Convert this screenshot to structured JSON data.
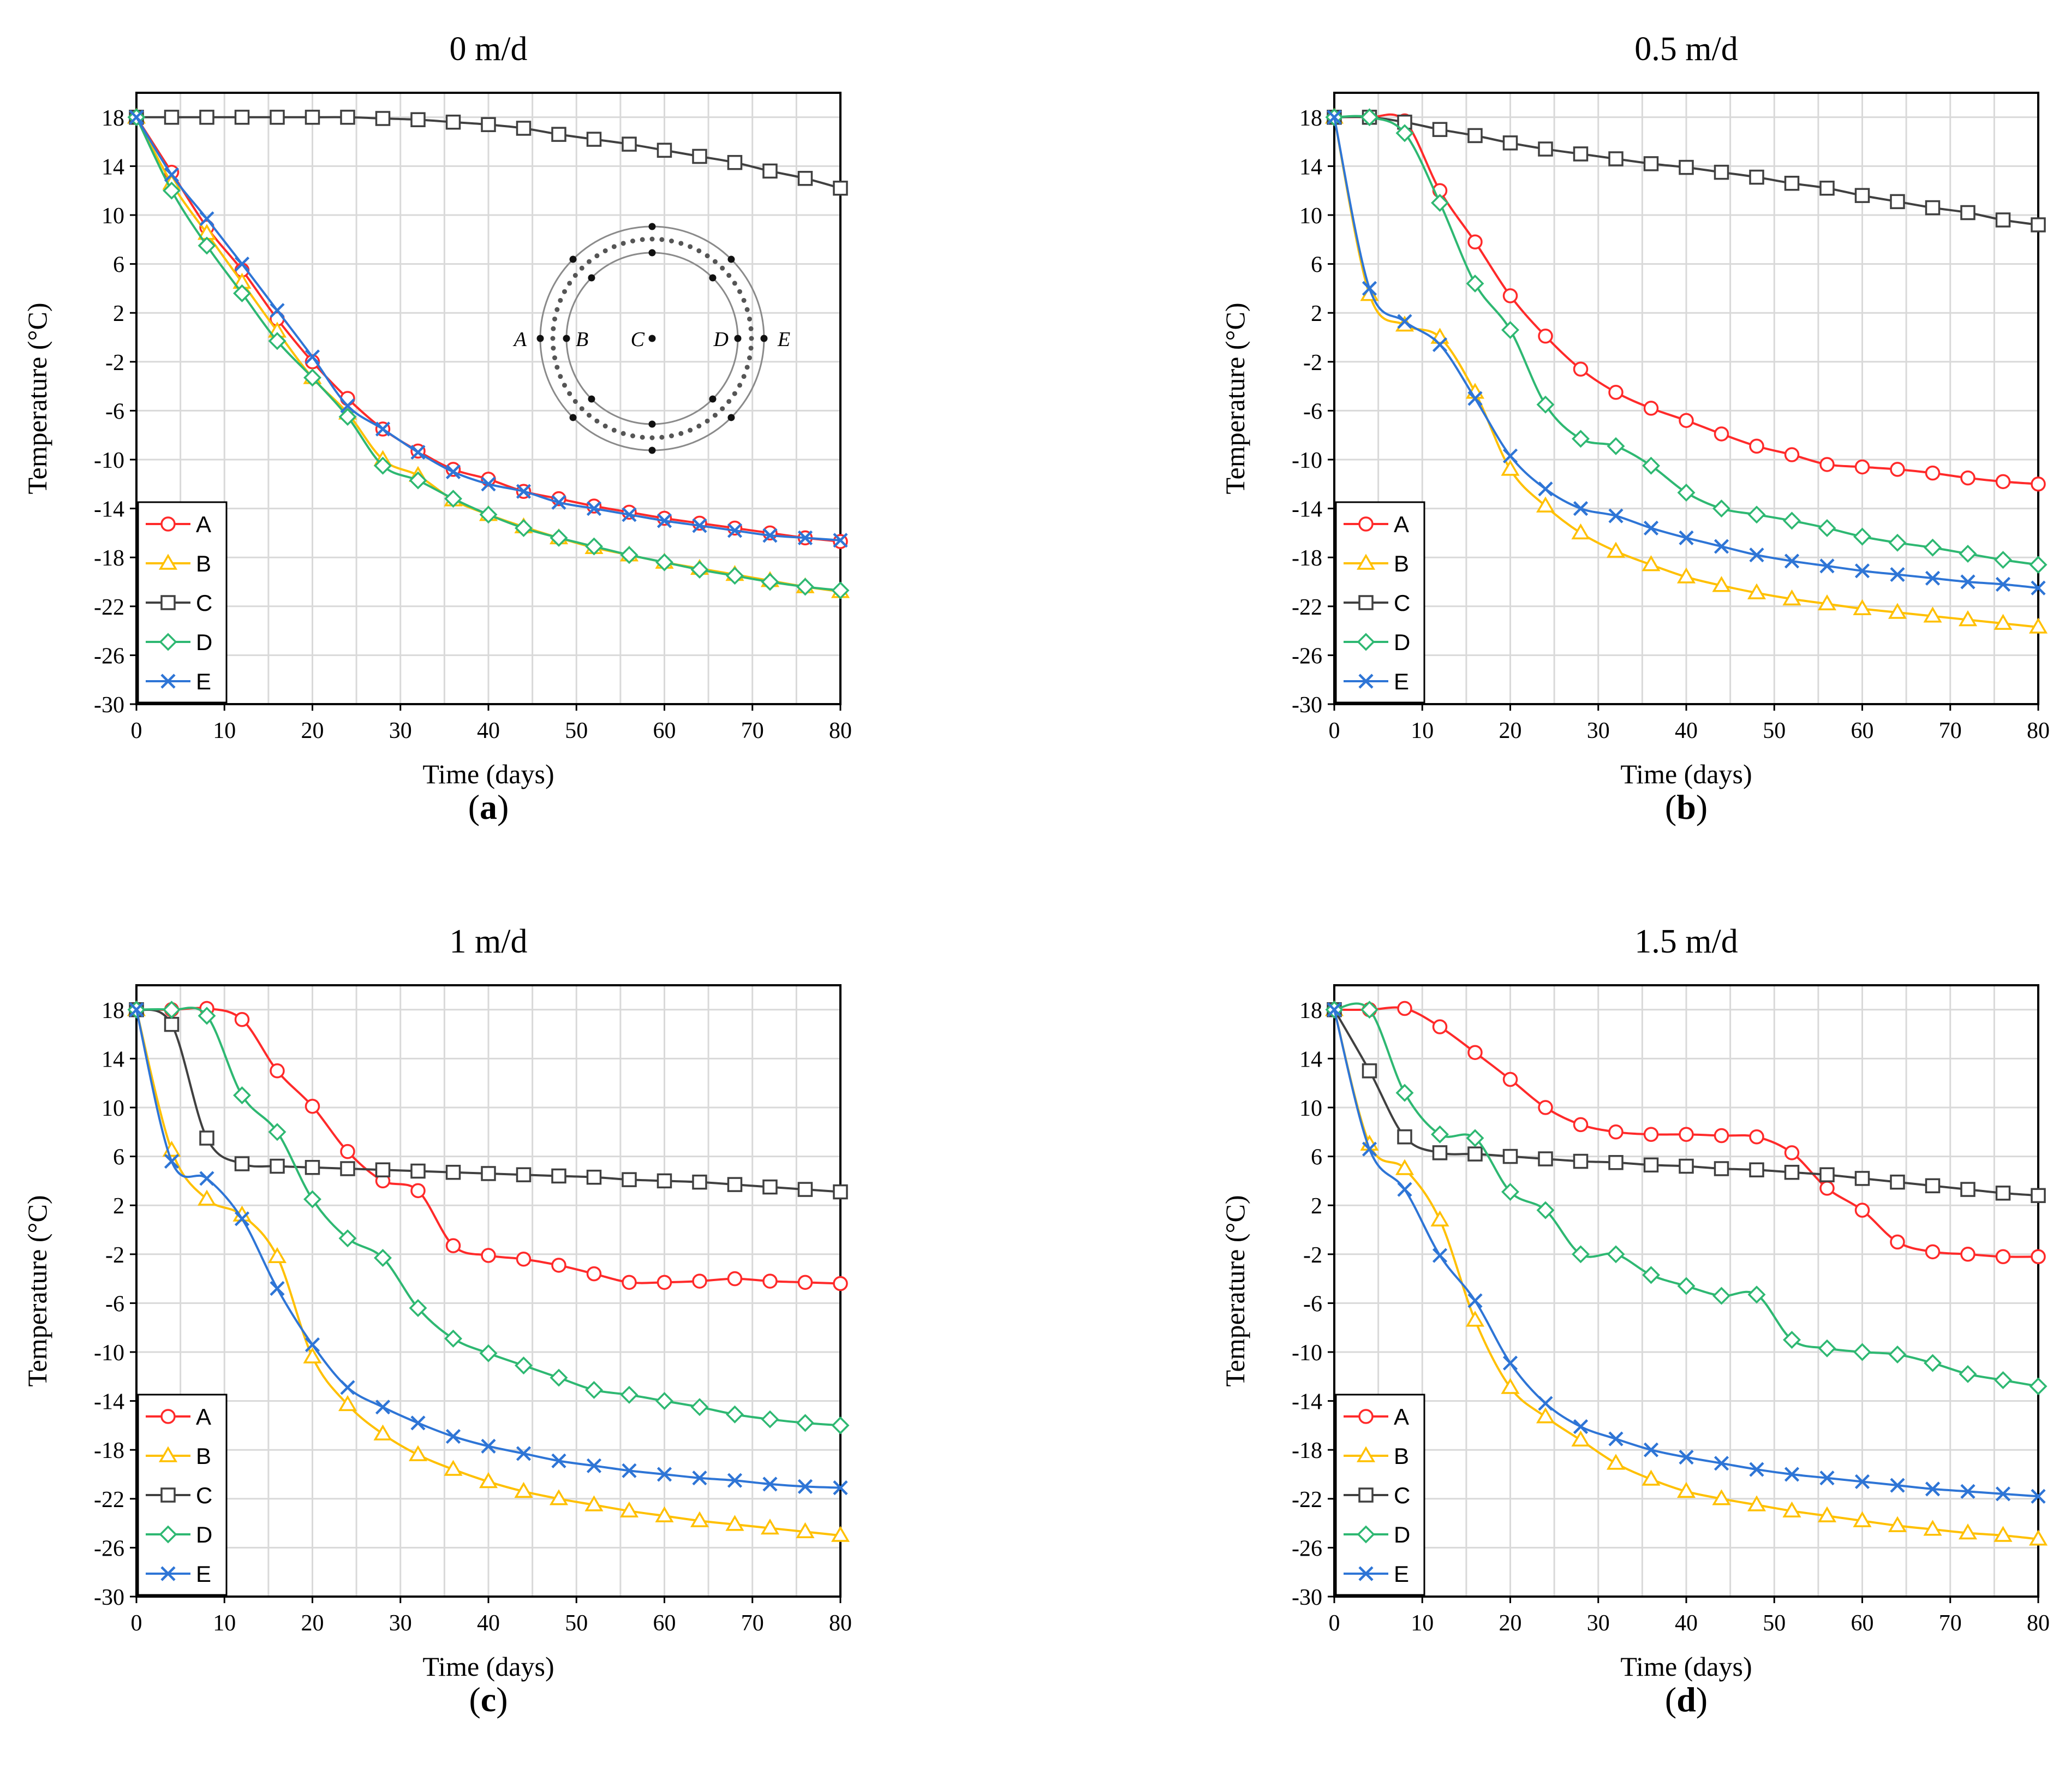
{
  "chart_data": [
    {
      "type": "line",
      "panel_letter": "a",
      "title": "0 m/d",
      "xlabel": "Time (days)",
      "ylabel": "Temperature (°C)",
      "xlim": [
        0,
        80
      ],
      "ylim": [
        -30,
        20
      ],
      "xticks": [
        0,
        10,
        20,
        30,
        40,
        50,
        60,
        70,
        80
      ],
      "yticks": [
        18,
        14,
        10,
        6,
        2,
        -2,
        -6,
        -10,
        -14,
        -18,
        -22,
        -26,
        -30
      ],
      "grid": true,
      "legend_position": "bottom-left",
      "x": [
        0,
        4,
        8,
        12,
        16,
        20,
        24,
        28,
        32,
        36,
        40,
        44,
        48,
        52,
        56,
        60,
        64,
        68,
        72,
        76,
        80
      ],
      "series": [
        {
          "name": "A",
          "color": "#ff2a2a",
          "marker": "circle",
          "values": [
            18,
            13.5,
            9,
            5.5,
            1.5,
            -2,
            -5,
            -7.5,
            -9.3,
            -10.8,
            -11.6,
            -12.6,
            -13.2,
            -13.8,
            -14.3,
            -14.8,
            -15.2,
            -15.6,
            -16.0,
            -16.4,
            -16.7
          ]
        },
        {
          "name": "B",
          "color": "#ffc000",
          "marker": "triangle",
          "values": [
            18,
            12.6,
            8.5,
            4.5,
            0.5,
            -3.3,
            -6.2,
            -10.0,
            -11.3,
            -13.3,
            -14.5,
            -15.5,
            -16.4,
            -17.2,
            -17.8,
            -18.4,
            -18.9,
            -19.4,
            -19.9,
            -20.4,
            -20.8
          ]
        },
        {
          "name": "C",
          "color": "#404040",
          "marker": "square",
          "values": [
            18,
            18,
            18,
            18,
            18,
            18,
            18,
            17.9,
            17.8,
            17.6,
            17.4,
            17.1,
            16.6,
            16.2,
            15.8,
            15.3,
            14.8,
            14.3,
            13.6,
            13.0,
            12.2
          ]
        },
        {
          "name": "D",
          "color": "#2eb872",
          "marker": "diamond",
          "values": [
            18,
            12.0,
            7.5,
            3.6,
            -0.3,
            -3.3,
            -6.5,
            -10.5,
            -11.7,
            -13.2,
            -14.5,
            -15.6,
            -16.4,
            -17.1,
            -17.8,
            -18.4,
            -19.0,
            -19.5,
            -20.0,
            -20.4,
            -20.7
          ]
        },
        {
          "name": "E",
          "color": "#2e75d6",
          "marker": "cross",
          "values": [
            18,
            13.3,
            9.7,
            6.0,
            2.2,
            -1.6,
            -5.6,
            -7.5,
            -9.4,
            -11.0,
            -12.0,
            -12.6,
            -13.5,
            -14.0,
            -14.5,
            -15.0,
            -15.4,
            -15.8,
            -16.2,
            -16.4,
            -16.6
          ]
        }
      ],
      "inset": {
        "labels": [
          "A",
          "B",
          "C",
          "D",
          "E"
        ]
      }
    },
    {
      "type": "line",
      "panel_letter": "b",
      "title": "0.5 m/d",
      "xlabel": "Time (days)",
      "ylabel": "Temperature (°C)",
      "xlim": [
        0,
        80
      ],
      "ylim": [
        -30,
        20
      ],
      "xticks": [
        0,
        10,
        20,
        30,
        40,
        50,
        60,
        70,
        80
      ],
      "yticks": [
        18,
        14,
        10,
        6,
        2,
        -2,
        -6,
        -10,
        -14,
        -18,
        -22,
        -26,
        -30
      ],
      "grid": true,
      "legend_position": "bottom-left",
      "x": [
        0,
        4,
        8,
        12,
        16,
        20,
        24,
        28,
        32,
        36,
        40,
        44,
        48,
        52,
        56,
        60,
        64,
        68,
        72,
        76,
        80
      ],
      "series": [
        {
          "name": "A",
          "color": "#ff2a2a",
          "marker": "circle",
          "values": [
            18,
            18,
            17.7,
            12.0,
            7.8,
            3.4,
            0.1,
            -2.6,
            -4.5,
            -5.8,
            -6.8,
            -7.9,
            -8.9,
            -9.6,
            -10.4,
            -10.6,
            -10.8,
            -11.1,
            -11.5,
            -11.8,
            -12.0
          ]
        },
        {
          "name": "B",
          "color": "#ffc000",
          "marker": "triangle",
          "values": [
            18,
            3.5,
            1.0,
            0.0,
            -4.5,
            -10.8,
            -13.8,
            -16.0,
            -17.5,
            -18.6,
            -19.6,
            -20.3,
            -20.9,
            -21.4,
            -21.8,
            -22.2,
            -22.5,
            -22.8,
            -23.1,
            -23.4,
            -23.7
          ]
        },
        {
          "name": "C",
          "color": "#404040",
          "marker": "square",
          "values": [
            18,
            18,
            17.6,
            17.0,
            16.5,
            15.9,
            15.4,
            15.0,
            14.6,
            14.2,
            13.9,
            13.5,
            13.1,
            12.6,
            12.2,
            11.6,
            11.1,
            10.6,
            10.2,
            9.6,
            9.2
          ]
        },
        {
          "name": "D",
          "color": "#2eb872",
          "marker": "diamond",
          "values": [
            18,
            18,
            16.7,
            11.0,
            4.4,
            0.6,
            -5.5,
            -8.3,
            -8.9,
            -10.5,
            -12.7,
            -14.0,
            -14.5,
            -15.0,
            -15.6,
            -16.3,
            -16.8,
            -17.2,
            -17.7,
            -18.2,
            -18.6
          ]
        },
        {
          "name": "E",
          "color": "#2e75d6",
          "marker": "cross",
          "values": [
            18,
            4.0,
            1.3,
            -0.6,
            -5.0,
            -9.7,
            -12.4,
            -14.0,
            -14.6,
            -15.6,
            -16.4,
            -17.1,
            -17.8,
            -18.3,
            -18.7,
            -19.1,
            -19.4,
            -19.7,
            -20.0,
            -20.2,
            -20.5
          ]
        }
      ]
    },
    {
      "type": "line",
      "panel_letter": "c",
      "title": "1 m/d",
      "xlabel": "Time (days)",
      "ylabel": "Temperature (°C)",
      "xlim": [
        0,
        80
      ],
      "ylim": [
        -30,
        20
      ],
      "xticks": [
        0,
        10,
        20,
        30,
        40,
        50,
        60,
        70,
        80
      ],
      "yticks": [
        18,
        14,
        10,
        6,
        2,
        -2,
        -6,
        -10,
        -14,
        -18,
        -22,
        -26,
        -30
      ],
      "grid": true,
      "legend_position": "bottom-left",
      "x": [
        0,
        4,
        8,
        12,
        16,
        20,
        24,
        28,
        32,
        36,
        40,
        44,
        48,
        52,
        56,
        60,
        64,
        68,
        72,
        76,
        80
      ],
      "series": [
        {
          "name": "A",
          "color": "#ff2a2a",
          "marker": "circle",
          "values": [
            18,
            18,
            18.1,
            17.2,
            13.0,
            10.1,
            6.4,
            4.0,
            3.2,
            -1.3,
            -2.1,
            -2.4,
            -2.9,
            -3.6,
            -4.3,
            -4.3,
            -4.2,
            -4.0,
            -4.2,
            -4.3,
            -4.4
          ]
        },
        {
          "name": "B",
          "color": "#ffc000",
          "marker": "triangle",
          "values": [
            18,
            6.5,
            2.5,
            1.2,
            -2.2,
            -10.4,
            -14.3,
            -16.7,
            -18.4,
            -19.6,
            -20.6,
            -21.4,
            -22.0,
            -22.5,
            -23.0,
            -23.4,
            -23.8,
            -24.1,
            -24.4,
            -24.7,
            -25.0
          ]
        },
        {
          "name": "C",
          "color": "#404040",
          "marker": "square",
          "values": [
            18,
            16.8,
            7.5,
            5.4,
            5.2,
            5.1,
            5.0,
            4.9,
            4.8,
            4.7,
            4.6,
            4.5,
            4.4,
            4.3,
            4.1,
            4.0,
            3.9,
            3.7,
            3.5,
            3.3,
            3.1
          ]
        },
        {
          "name": "D",
          "color": "#2eb872",
          "marker": "diamond",
          "values": [
            18,
            18,
            17.5,
            11.0,
            8.0,
            2.5,
            -0.7,
            -2.3,
            -6.4,
            -8.9,
            -10.1,
            -11.1,
            -12.1,
            -13.1,
            -13.5,
            -14.0,
            -14.5,
            -15.1,
            -15.5,
            -15.8,
            -16.0
          ]
        },
        {
          "name": "E",
          "color": "#2e75d6",
          "marker": "cross",
          "values": [
            18,
            5.6,
            4.2,
            0.9,
            -4.8,
            -9.4,
            -12.9,
            -14.5,
            -15.8,
            -16.9,
            -17.7,
            -18.3,
            -18.9,
            -19.3,
            -19.7,
            -20.0,
            -20.3,
            -20.5,
            -20.8,
            -21.0,
            -21.1
          ]
        }
      ]
    },
    {
      "type": "line",
      "panel_letter": "d",
      "title": "1.5 m/d",
      "xlabel": "Time (days)",
      "ylabel": "Temperature (°C)",
      "xlim": [
        0,
        80
      ],
      "ylim": [
        -30,
        20
      ],
      "xticks": [
        0,
        10,
        20,
        30,
        40,
        50,
        60,
        70,
        80
      ],
      "yticks": [
        18,
        14,
        10,
        6,
        2,
        -2,
        -6,
        -10,
        -14,
        -18,
        -22,
        -26,
        -30
      ],
      "grid": true,
      "legend_position": "bottom-left",
      "x": [
        0,
        4,
        8,
        12,
        16,
        20,
        24,
        28,
        32,
        36,
        40,
        44,
        48,
        52,
        56,
        60,
        64,
        68,
        72,
        76,
        80
      ],
      "series": [
        {
          "name": "A",
          "color": "#ff2a2a",
          "marker": "circle",
          "values": [
            18,
            18,
            18.1,
            16.6,
            14.5,
            12.3,
            10.0,
            8.6,
            8.0,
            7.8,
            7.8,
            7.7,
            7.6,
            6.3,
            3.4,
            1.6,
            -1.0,
            -1.8,
            -2.0,
            -2.2,
            -2.2
          ]
        },
        {
          "name": "B",
          "color": "#ffc000",
          "marker": "triangle",
          "values": [
            18,
            7.0,
            5.0,
            0.8,
            -7.4,
            -12.9,
            -15.3,
            -17.2,
            -19.1,
            -20.4,
            -21.4,
            -22.0,
            -22.5,
            -23.0,
            -23.4,
            -23.8,
            -24.2,
            -24.5,
            -24.8,
            -25.0,
            -25.3
          ]
        },
        {
          "name": "C",
          "color": "#404040",
          "marker": "square",
          "values": [
            18,
            13.0,
            7.6,
            6.3,
            6.2,
            6.0,
            5.8,
            5.6,
            5.5,
            5.3,
            5.2,
            5.0,
            4.9,
            4.7,
            4.5,
            4.2,
            3.9,
            3.6,
            3.3,
            3.0,
            2.8
          ]
        },
        {
          "name": "D",
          "color": "#2eb872",
          "marker": "diamond",
          "values": [
            18,
            18,
            11.2,
            7.8,
            7.5,
            3.1,
            1.6,
            -2.0,
            -2.0,
            -3.7,
            -4.6,
            -5.4,
            -5.3,
            -9.0,
            -9.7,
            -10.0,
            -10.2,
            -10.9,
            -11.8,
            -12.3,
            -12.8
          ]
        },
        {
          "name": "E",
          "color": "#2e75d6",
          "marker": "cross",
          "values": [
            18,
            6.6,
            3.3,
            -2.1,
            -5.8,
            -10.9,
            -14.2,
            -16.1,
            -17.1,
            -18.0,
            -18.6,
            -19.1,
            -19.6,
            -20.0,
            -20.3,
            -20.6,
            -20.9,
            -21.2,
            -21.4,
            -21.6,
            -21.8
          ]
        }
      ]
    }
  ]
}
